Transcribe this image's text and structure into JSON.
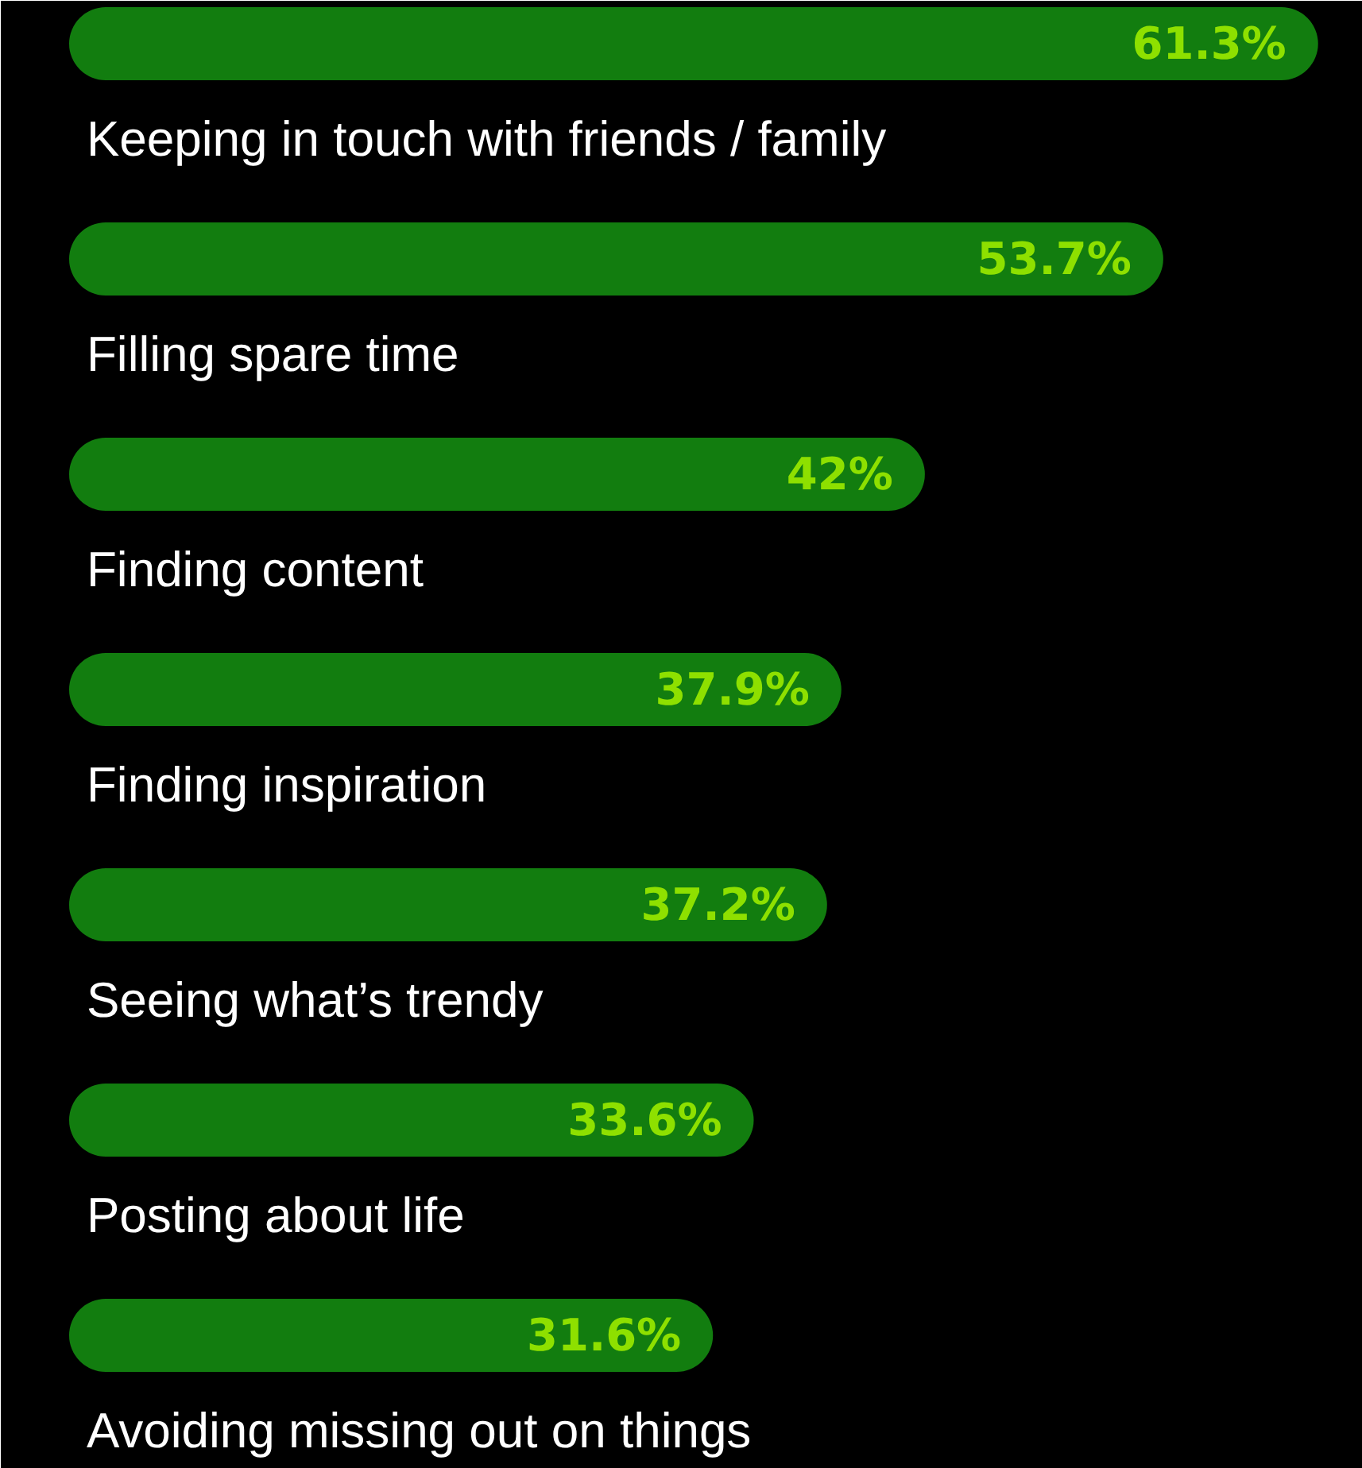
{
  "chart_data": {
    "type": "bar",
    "orientation": "horizontal",
    "categories": [
      "Keeping in touch with friends / family",
      "Filling spare time",
      "Finding content",
      "Finding inspiration",
      "Seeing what’s trendy",
      "Posting about life",
      "Avoiding missing out on things"
    ],
    "values": [
      61.3,
      53.7,
      42,
      37.9,
      37.2,
      33.6,
      31.6
    ],
    "value_labels": [
      "61.3%",
      "53.7%",
      "42%",
      "37.9%",
      "37.2%",
      "33.6%",
      "31.6%"
    ],
    "color": "#127d0f",
    "grid": false
  }
}
